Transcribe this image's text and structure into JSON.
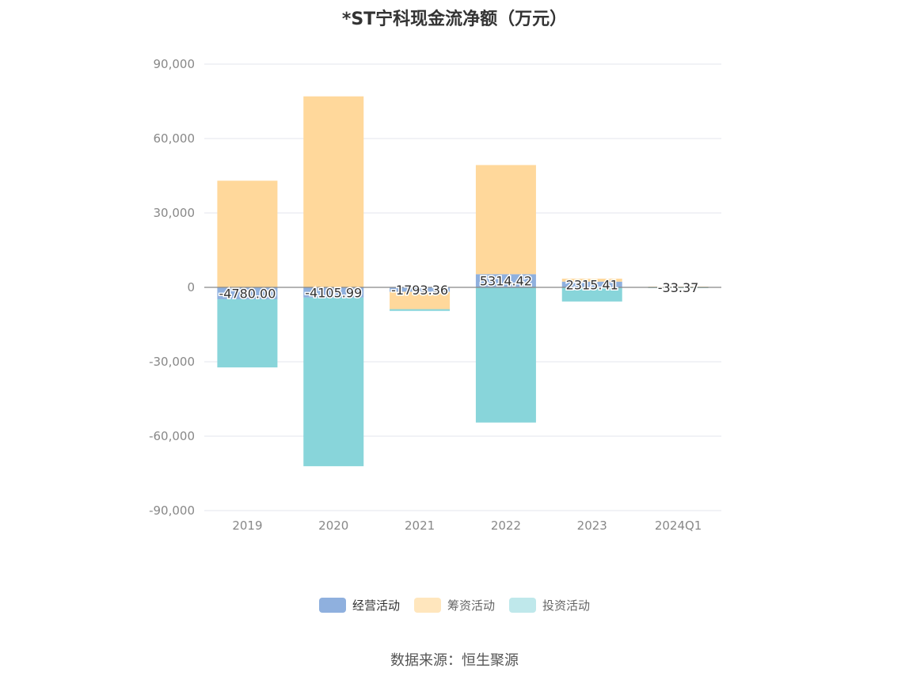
{
  "title": "*ST宁科现金流净额（万元）",
  "source": "数据来源：恒生聚源",
  "chart_data": {
    "type": "bar",
    "stacked": true,
    "categories": [
      "2019",
      "2020",
      "2021",
      "2022",
      "2023",
      "2024Q1"
    ],
    "ylim": [
      -90000,
      90000
    ],
    "yticks": [
      90000,
      60000,
      30000,
      0,
      -30000,
      -60000,
      -90000
    ],
    "ytick_labels": [
      "90,000",
      "60,000",
      "30,000",
      "0",
      "-30,000",
      "-60,000",
      "-90,000"
    ],
    "grid": true,
    "legend_position": "bottom",
    "series": [
      {
        "name": "经营活动",
        "color": "#8fb0de",
        "values": [
          -4780.0,
          -4105.99,
          -1793.36,
          5314.42,
          2315.41,
          -33.37
        ]
      },
      {
        "name": "筹资活动",
        "color": "#ffd89b",
        "values": [
          43000,
          77000,
          -7000,
          44000,
          1200,
          300
        ]
      },
      {
        "name": "投资活动",
        "color": "#88d5da",
        "values": [
          -27500,
          -68000,
          -700,
          -54500,
          -5700,
          -200
        ]
      }
    ],
    "data_labels": [
      "-4780.00",
      "-4105.99",
      "-1793.36",
      "5314.42",
      "2315.41",
      "-33.37"
    ]
  }
}
